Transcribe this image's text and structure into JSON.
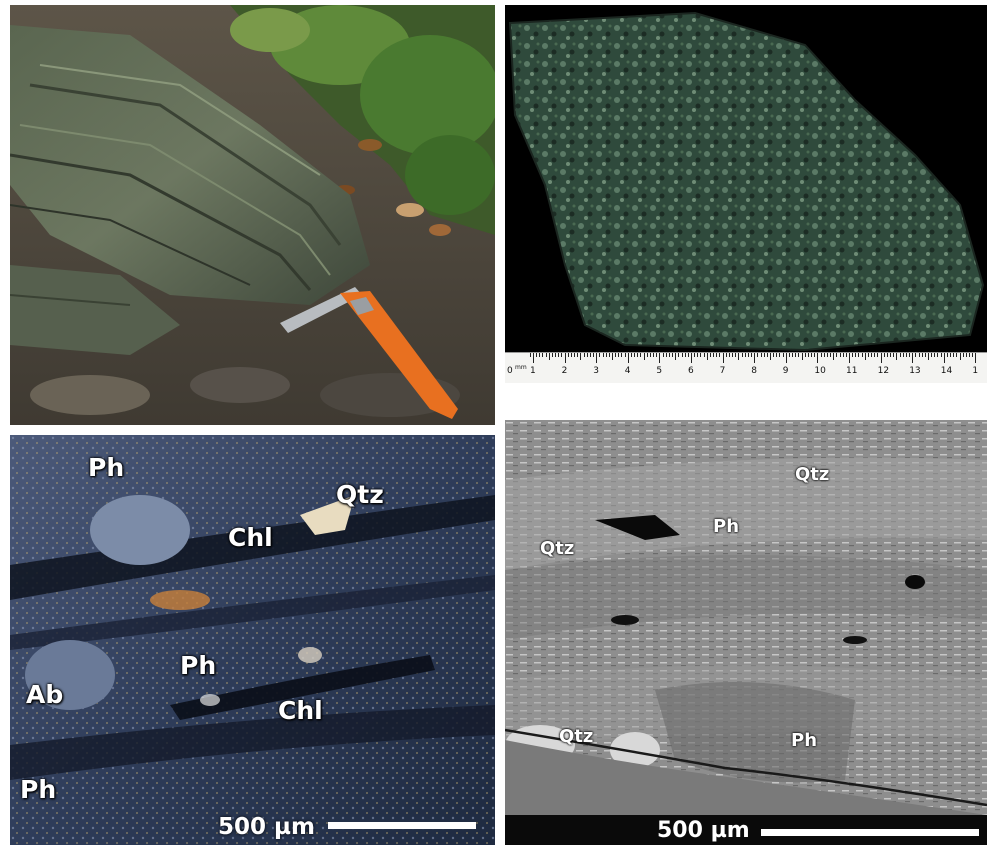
{
  "panels": {
    "outcrop": {
      "icons": [
        "rock-outcrop-photo",
        "rock-hammer-icon"
      ]
    },
    "hand_specimen": {
      "ruler": {
        "start_label": "0",
        "unit_label": "mm",
        "numbers": [
          "1",
          "2",
          "3",
          "4",
          "5",
          "6",
          "7",
          "8",
          "9",
          "10",
          "11",
          "12",
          "13",
          "14",
          "1"
        ]
      }
    },
    "micrograph": {
      "labels": {
        "ph_top": "Ph",
        "qtz": "Qtz",
        "chl_upper": "Chl",
        "ph_mid": "Ph",
        "ab": "Ab",
        "chl_lower": "Chl",
        "ph_bottom": "Ph"
      },
      "scale_bar": "500 µm"
    },
    "bse": {
      "labels": {
        "qtz_top": "Qtz",
        "ph_upper": "Ph",
        "qtz_left": "Qtz",
        "qtz_bottom": "Qtz",
        "ph_bottom": "Ph"
      },
      "scale_bar": "500 µm"
    }
  },
  "colors": {
    "outcrop_rock": "#4e5a48",
    "specimen_green": "#2f4a3c",
    "micrograph_blue": "#2a3a5a",
    "bse_gray": "#8a8a8a",
    "hammer_handle": "#e87020"
  }
}
